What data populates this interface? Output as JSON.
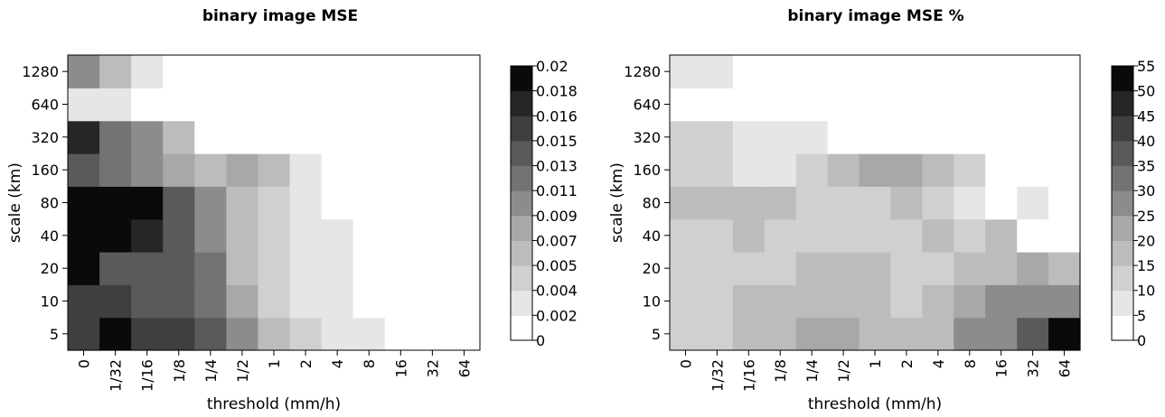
{
  "chart_data": [
    {
      "type": "heatmap",
      "title": "binary image MSE",
      "xlabel": "threshold (mm/h)",
      "ylabel": "scale (km)",
      "x_categories": [
        "0",
        "1/32",
        "1/16",
        "1/8",
        "1/4",
        "1/2",
        "1",
        "2",
        "4",
        "8",
        "16",
        "32",
        "64"
      ],
      "y_categories": [
        "5",
        "10",
        "20",
        "40",
        "80",
        "160",
        "320",
        "640",
        "1280"
      ],
      "colorbar": {
        "ticks": [
          "0",
          "0.002",
          "0.004",
          "0.005",
          "0.007",
          "0.009",
          "0.011",
          "0.013",
          "0.015",
          "0.016",
          "0.018",
          "0.02"
        ],
        "range": [
          0,
          0.02
        ]
      },
      "values": [
        [
          0.0155,
          0.0185,
          0.0155,
          0.0155,
          0.0135,
          0.0095,
          0.0065,
          0.0045,
          0.0025,
          0.0025,
          0.0005,
          0.0005,
          0.0005
        ],
        [
          0.0155,
          0.0155,
          0.0145,
          0.0145,
          0.0115,
          0.0075,
          0.0045,
          0.0025,
          0.0025,
          0.0005,
          0.0005,
          0.0005,
          0.0005
        ],
        [
          0.0185,
          0.0145,
          0.0145,
          0.0145,
          0.0115,
          0.0065,
          0.0045,
          0.0025,
          0.0025,
          0.0005,
          0.0005,
          0.0005,
          0.0005
        ],
        [
          0.0205,
          0.0185,
          0.0165,
          0.0145,
          0.0095,
          0.0065,
          0.0045,
          0.0025,
          0.0025,
          0.0005,
          0.0005,
          0.0005,
          0.0005
        ],
        [
          0.0205,
          0.0185,
          0.0185,
          0.0145,
          0.0095,
          0.0065,
          0.0045,
          0.0025,
          0.0005,
          0.0005,
          0.0005,
          0.0005,
          0.0005
        ],
        [
          0.0135,
          0.0115,
          0.0095,
          0.0075,
          0.0055,
          0.0075,
          0.0055,
          0.0035,
          0.0015,
          0.0005,
          0.0005,
          0.0005,
          0.0005
        ],
        [
          0.0165,
          0.0115,
          0.0095,
          0.0055,
          0.0015,
          0.0005,
          0.0005,
          0.0005,
          0.0005,
          0.0005,
          0.0005,
          0.0005,
          0.0005
        ],
        [
          0.0035,
          0.0035,
          0.0015,
          0.0015,
          0.0005,
          0.0005,
          0.0005,
          0.0005,
          0.0005,
          0.0005,
          0.0005,
          0.0005,
          0.0005
        ],
        [
          0.0095,
          0.0055,
          0.0035,
          0.0015,
          0.0005,
          0.0005,
          0.0005,
          0.0005,
          0.0005,
          0.0005,
          0.0005,
          0.0005,
          0.0005
        ]
      ]
    },
    {
      "type": "heatmap",
      "title": "binary image MSE %",
      "xlabel": "threshold (mm/h)",
      "ylabel": "scale (km)",
      "x_categories": [
        "0",
        "1/32",
        "1/16",
        "1/8",
        "1/4",
        "1/2",
        "1",
        "2",
        "4",
        "8",
        "16",
        "32",
        "64"
      ],
      "y_categories": [
        "5",
        "10",
        "20",
        "40",
        "80",
        "160",
        "320",
        "640",
        "1280"
      ],
      "colorbar": {
        "ticks": [
          "0",
          "5",
          "10",
          "15",
          "20",
          "25",
          "30",
          "35",
          "40",
          "45",
          "50",
          "55"
        ],
        "range": [
          0,
          55
        ]
      },
      "values": [
        [
          13,
          13,
          18,
          18,
          22,
          22,
          18,
          18,
          18,
          28,
          28,
          38,
          53
        ],
        [
          13,
          13,
          18,
          18,
          18,
          18,
          18,
          13,
          18,
          22,
          28,
          28,
          28
        ],
        [
          13,
          13,
          13,
          13,
          18,
          18,
          18,
          13,
          13,
          18,
          18,
          22,
          18
        ],
        [
          13,
          13,
          18,
          13,
          13,
          13,
          13,
          13,
          18,
          13,
          18,
          3,
          3
        ],
        [
          18,
          18,
          18,
          18,
          13,
          13,
          13,
          18,
          13,
          8,
          3,
          8,
          3
        ],
        [
          13,
          13,
          8,
          8,
          13,
          18,
          22,
          22,
          18,
          13,
          3,
          3,
          3
        ],
        [
          13,
          13,
          8,
          8,
          8,
          3,
          3,
          3,
          3,
          3,
          3,
          3,
          3
        ],
        [
          3,
          3,
          3,
          3,
          3,
          3,
          3,
          3,
          3,
          3,
          3,
          3,
          3
        ],
        [
          8,
          8,
          3,
          3,
          3,
          3,
          3,
          3,
          3,
          3,
          3,
          3,
          3
        ]
      ]
    }
  ]
}
